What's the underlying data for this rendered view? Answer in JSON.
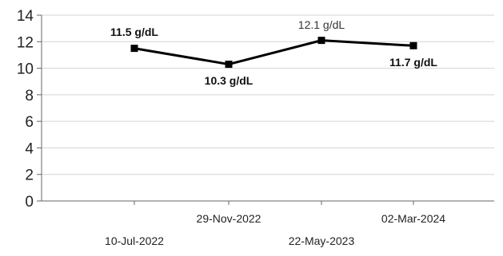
{
  "chart_data": {
    "type": "line",
    "title": "",
    "xlabel": "",
    "ylabel": "",
    "ylim": [
      0,
      14
    ],
    "y_ticks": [
      "0",
      "2",
      "4",
      "6",
      "8",
      "10",
      "12",
      "14"
    ],
    "grid": "horizontal",
    "legend": "none",
    "categories": [
      "10-Jul-2022",
      "29-Nov-2022",
      "22-May-2023",
      "02-Mar-2024"
    ],
    "series": [
      {
        "values": [
          11.5,
          10.3,
          12.1,
          11.7
        ],
        "data_labels": [
          "11.5 g/dL",
          "10.3 g/dL",
          "12.1 g/dL",
          "11.7 g/dL"
        ],
        "label_weights": [
          "bold",
          "bold",
          "normal",
          "bold"
        ],
        "color": "#000000"
      }
    ],
    "colors": {
      "grid": "#d4d4d4",
      "axis": "#666666",
      "line": "#000000"
    }
  }
}
